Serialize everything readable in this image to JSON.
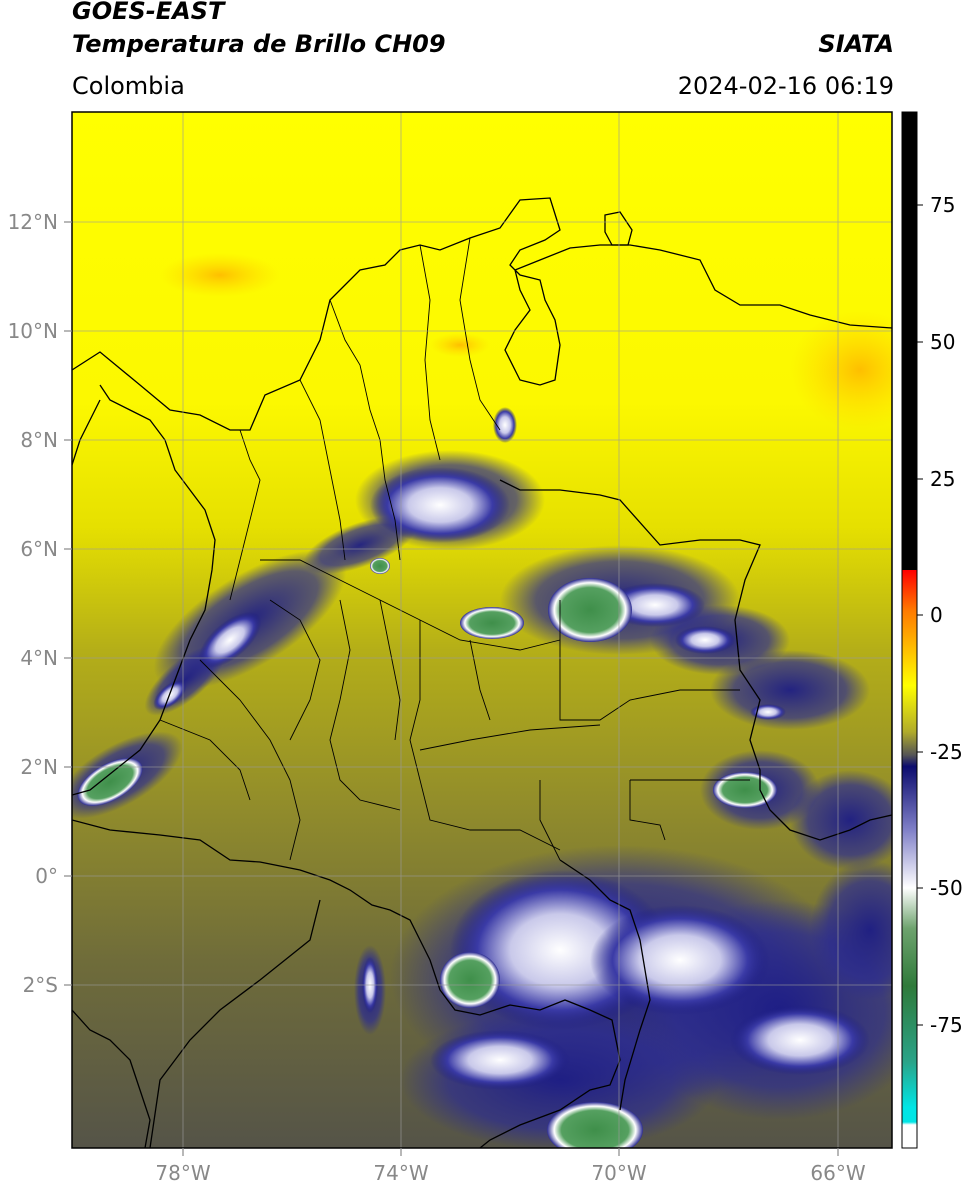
{
  "header": {
    "satellite": "GOES-EAST",
    "product": "Temperatura de Brillo CH09",
    "brand": "SIATA",
    "region": "Colombia",
    "datetime": "2024-02-16 06:19"
  },
  "map": {
    "lat_labels": [
      "12°N",
      "10°N",
      "8°N",
      "6°N",
      "4°N",
      "2°N",
      "0°",
      "2°S"
    ],
    "lon_labels": [
      "78°W",
      "74°W",
      "70°W",
      "66°W"
    ]
  },
  "colorbar": {
    "tick_labels": [
      "75",
      "50",
      "25",
      "0",
      "-25",
      "-50",
      "-75"
    ],
    "colors": {
      "white": "#ffffff",
      "cyan": "#00e5e5",
      "teal": "#2aa388",
      "green": "#3a8a3a",
      "pale": "#e8efe0",
      "blue": "#23238f",
      "navy": "#0c0c6e",
      "gray": "#5a5a55",
      "olive": "#a8a820",
      "yellow": "#ffff00",
      "orange": "#ff9a00",
      "red": "#ff0000",
      "black": "#000000"
    }
  }
}
